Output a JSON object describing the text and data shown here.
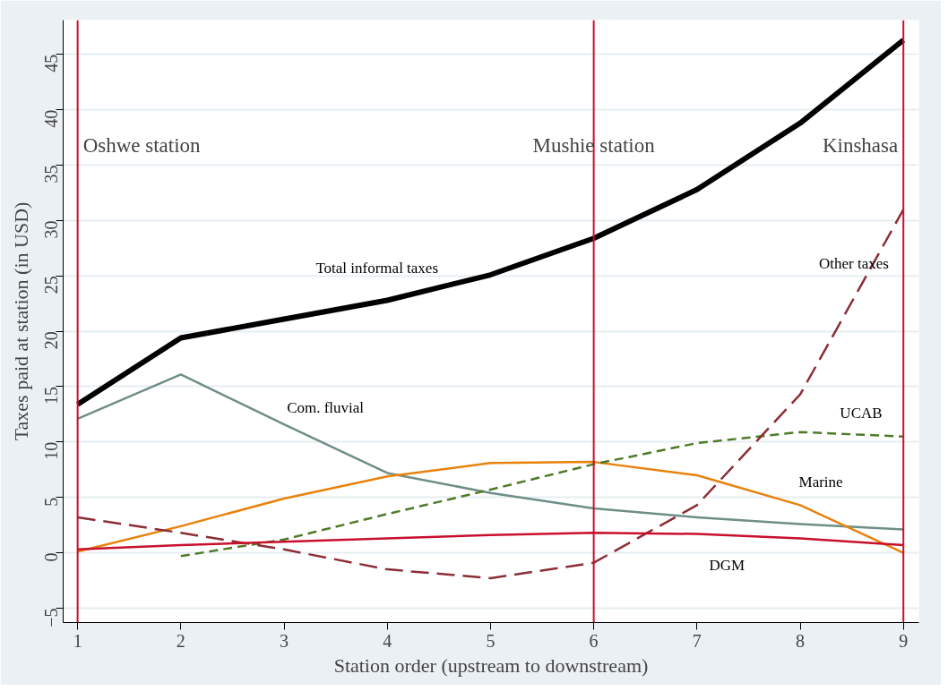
{
  "chart_data": {
    "type": "line",
    "xlabel": "Station order (upstream to downstream)",
    "ylabel": "Taxes paid at station (in USD)",
    "x": [
      1,
      2,
      3,
      4,
      5,
      6,
      7,
      8,
      9
    ],
    "xlim": [
      0.86,
      9.15
    ],
    "xticks": [
      1,
      2,
      3,
      4,
      5,
      6,
      7,
      8,
      9
    ],
    "ylim": [
      -6.3,
      48.1
    ],
    "yticks": [
      -5,
      0,
      5,
      10,
      15,
      20,
      25,
      30,
      35,
      40,
      45
    ],
    "grid": "y",
    "legend": false,
    "marker": "none",
    "series": [
      {
        "name": "Total informal taxes",
        "color": "#000000",
        "line_style": "solid",
        "values": [
          13.4,
          19.4,
          21.1,
          22.8,
          25.1,
          28.4,
          32.8,
          38.8,
          46.3
        ]
      },
      {
        "name": "Com. fluvial",
        "color": "#6e8f86",
        "line_style": "solid",
        "values": [
          12.1,
          16.1,
          11.6,
          7.2,
          5.4,
          4.0,
          3.2,
          2.6,
          2.1
        ]
      },
      {
        "name": "Marine",
        "color": "#e8820c",
        "line_style": "solid",
        "values": [
          0.1,
          2.4,
          4.9,
          6.9,
          8.1,
          8.2,
          7.0,
          4.3,
          0.0
        ]
      },
      {
        "name": "UCAB",
        "color": "#4f7a28",
        "line_style": "dashed",
        "values": [
          null,
          -0.3,
          1.2,
          3.5,
          5.7,
          8.0,
          9.9,
          10.9,
          10.5
        ]
      },
      {
        "name": "Other taxes",
        "color": "#8b2e36",
        "line_style": "dashed",
        "values": [
          3.2,
          1.8,
          0.3,
          -1.5,
          -2.3,
          -0.9,
          4.3,
          14.3,
          31.0
        ]
      },
      {
        "name": "DGM",
        "color": "#c8102e",
        "line_style": "solid",
        "values": [
          0.3,
          0.7,
          1.0,
          1.3,
          1.6,
          1.8,
          1.7,
          1.3,
          0.7
        ]
      }
    ],
    "ref_lines": [
      {
        "axis": "x",
        "value": 1,
        "label": "Oshwe station",
        "color": "#c8102e"
      },
      {
        "axis": "x",
        "value": 6,
        "label": "Mushie station",
        "color": "#c8102e"
      },
      {
        "axis": "x",
        "value": 9,
        "label": "Kinshasa",
        "color": "#c8102e"
      }
    ]
  }
}
